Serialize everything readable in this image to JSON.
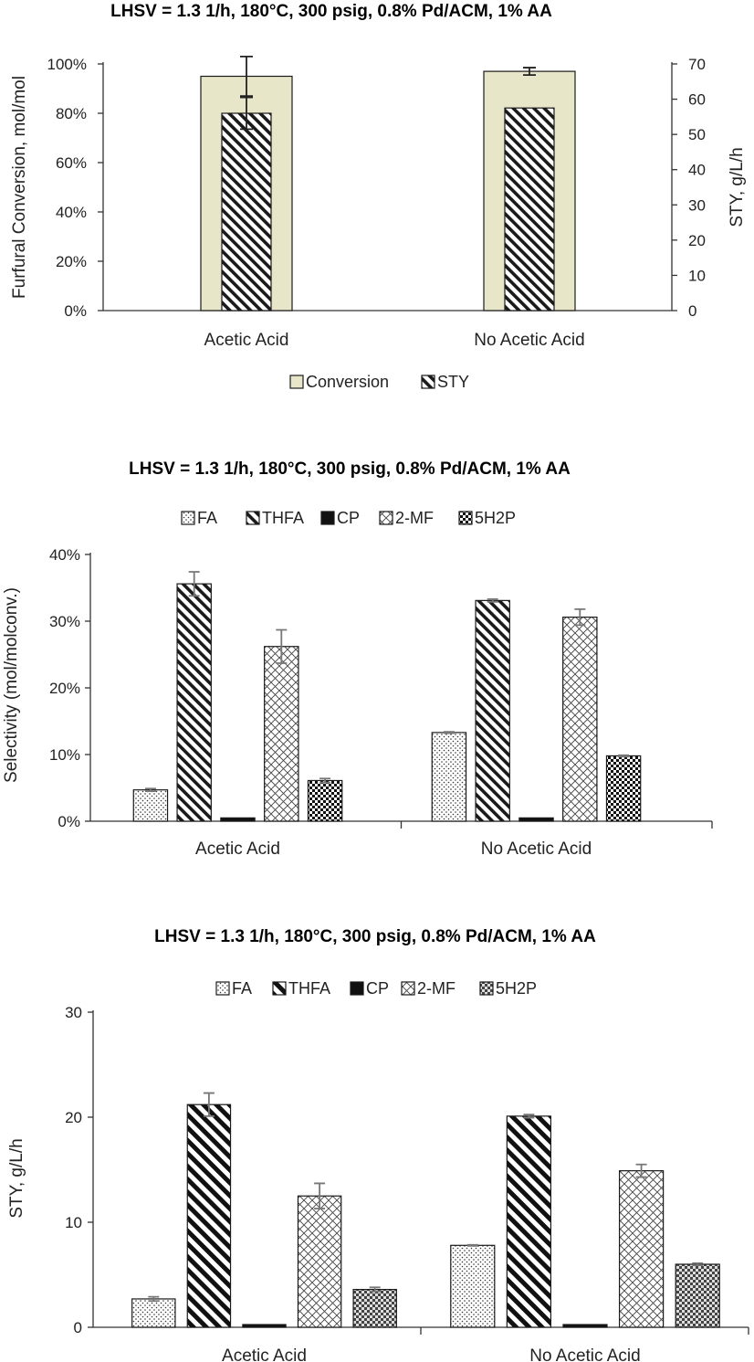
{
  "colors": {
    "conversion_fill": "#e8e6c8",
    "outline": "#1a1a1a",
    "error_bar": "#222222",
    "error_bar_grey": "#777777"
  },
  "chart_data": [
    {
      "type": "bar",
      "title": "LHSV = 1.3 1/h, 180°C, 300 psig, 0.8% Pd/ACM, 1% AA",
      "categories": [
        "Acetic Acid",
        "No Acetic Acid"
      ],
      "ylabel": "Furfural Conversion, mol/mol",
      "y2label": "STY, g/L/h",
      "ylim": [
        0,
        1.0
      ],
      "yticks": [
        "0%",
        "20%",
        "40%",
        "60%",
        "80%",
        "100%"
      ],
      "y2lim": [
        0,
        70
      ],
      "y2ticks": [
        "0",
        "10",
        "20",
        "30",
        "40",
        "50",
        "60",
        "70"
      ],
      "legend_position": "bottom",
      "series": [
        {
          "name": "Conversion",
          "axis": "left",
          "pattern": "solid",
          "values": [
            0.95,
            0.97
          ],
          "errors": [
            0.08,
            0.015
          ]
        },
        {
          "name": "STY",
          "axis": "right",
          "pattern": "diag",
          "values": [
            56,
            57.5
          ],
          "errors": [
            4.5,
            0
          ]
        }
      ]
    },
    {
      "type": "bar",
      "title": "LHSV = 1.3 1/h, 180°C, 300 psig, 0.8% Pd/ACM, 1% AA",
      "categories": [
        "Acetic Acid",
        "No Acetic Acid"
      ],
      "ylabel": "Selectivity (mol/molconv.)",
      "ylim": [
        0,
        0.4
      ],
      "yticks": [
        "0%",
        "10%",
        "20%",
        "30%",
        "40%"
      ],
      "legend_position": "top",
      "series": [
        {
          "name": "FA",
          "pattern": "dots",
          "values": [
            0.047,
            0.133
          ],
          "errors": [
            0.002,
            0.001
          ]
        },
        {
          "name": "THFA",
          "pattern": "diag",
          "values": [
            0.356,
            0.331
          ],
          "errors": [
            0.018,
            0.002
          ]
        },
        {
          "name": "CP",
          "pattern": "black",
          "values": [
            0.005,
            0.005
          ],
          "errors": [
            0,
            0
          ]
        },
        {
          "name": "2-MF",
          "pattern": "cross",
          "values": [
            0.262,
            0.306
          ],
          "errors": [
            0.025,
            0.012
          ]
        },
        {
          "name": "5H2P",
          "pattern": "checker",
          "values": [
            0.061,
            0.098
          ],
          "errors": [
            0.003,
            0.001
          ]
        }
      ]
    },
    {
      "type": "bar",
      "title": "LHSV = 1.3 1/h, 180°C, 300 psig, 0.8% Pd/ACM, 1% AA",
      "categories": [
        "Acetic Acid",
        "No Acetic Acid"
      ],
      "ylabel": "STY, g/L/h",
      "ylim": [
        0,
        30
      ],
      "yticks": [
        "0",
        "10",
        "20",
        "30"
      ],
      "legend_position": "top",
      "series": [
        {
          "name": "FA",
          "pattern": "dots",
          "values": [
            2.7,
            7.8
          ],
          "errors": [
            0.2,
            0.05
          ]
        },
        {
          "name": "THFA",
          "pattern": "diag-bold",
          "values": [
            21.2,
            20.1
          ],
          "errors": [
            1.1,
            0.15
          ]
        },
        {
          "name": "CP",
          "pattern": "black",
          "values": [
            0.25,
            0.25
          ],
          "errors": [
            0,
            0
          ]
        },
        {
          "name": "2-MF",
          "pattern": "cross",
          "values": [
            12.5,
            14.9
          ],
          "errors": [
            1.2,
            0.6
          ]
        },
        {
          "name": "5H2P",
          "pattern": "checker-grey",
          "values": [
            3.6,
            6.0
          ],
          "errors": [
            0.2,
            0.1
          ]
        }
      ]
    }
  ]
}
